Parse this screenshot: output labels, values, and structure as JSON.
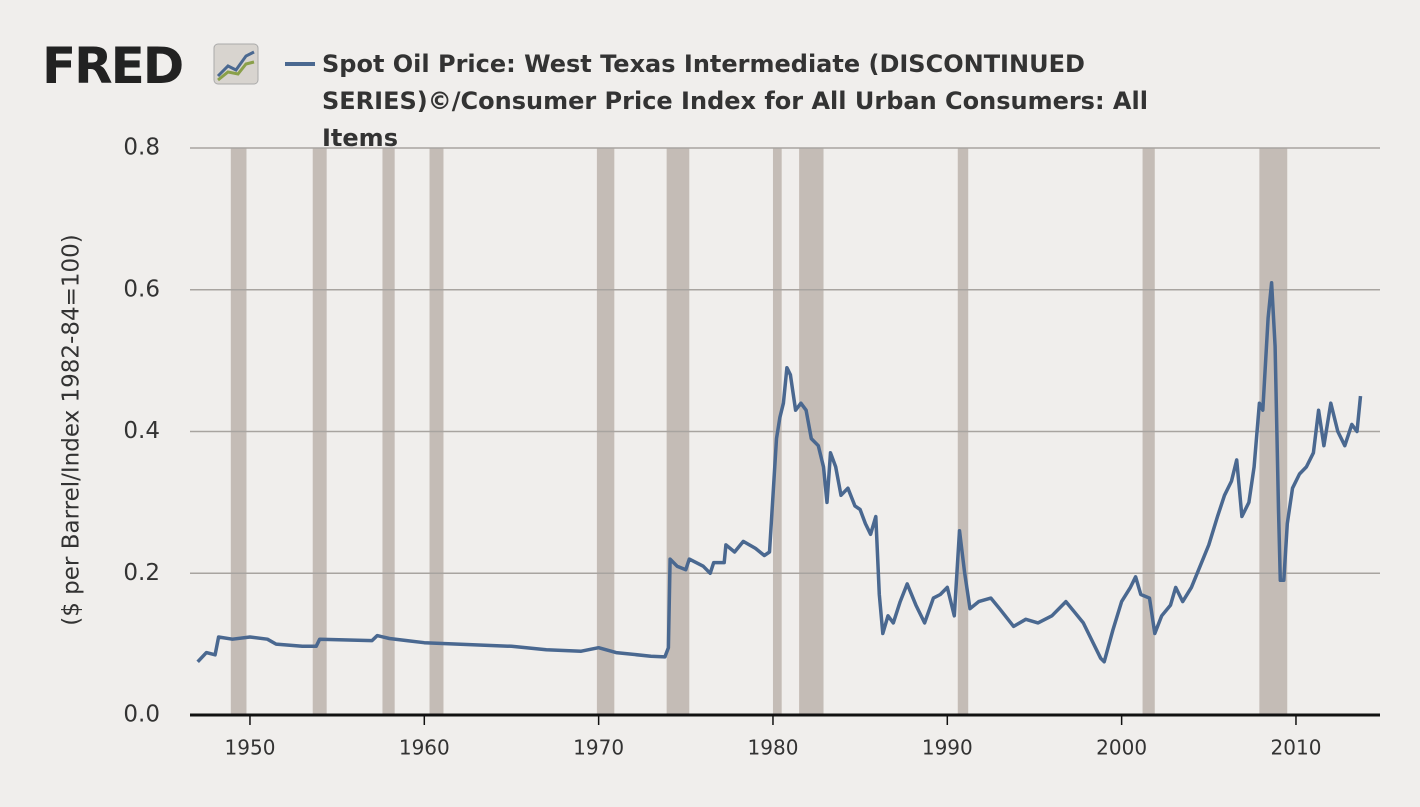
{
  "chart_data": {
    "type": "line",
    "logo": "FRED",
    "ylabel": "($ per Barrel/Index 1982-84=100)",
    "xlim": [
      1946.56,
      2014.82
    ],
    "ylim": [
      0,
      0.8
    ],
    "xticks": [
      1950,
      1960,
      1970,
      1980,
      1990,
      2000,
      2010
    ],
    "yticks": [
      {
        "value": 0,
        "label": "0.0"
      },
      0.2,
      0.4,
      0.6,
      0.8
    ],
    "grid": true,
    "recession_color": "#c4bcb6",
    "recessions": [
      [
        1948.9,
        1949.8
      ],
      [
        1953.6,
        1954.4
      ],
      [
        1957.6,
        1958.3
      ],
      [
        1960.3,
        1961.1
      ],
      [
        1969.9,
        1970.9
      ],
      [
        1973.9,
        1975.2
      ],
      [
        1980.0,
        1980.5
      ],
      [
        1981.5,
        1982.9
      ],
      [
        1990.6,
        1991.2
      ],
      [
        2001.2,
        2001.9
      ],
      [
        2007.9,
        2009.5
      ]
    ],
    "series": [
      {
        "name": "Spot Oil Price: West Texas Intermediate (DISCONTINUED SERIES)©/Consumer Price Index for All Urban Consumers: All Items",
        "color": "#4a6890",
        "x": [
          1947.0,
          1947.5,
          1948.0,
          1948.2,
          1949.0,
          1950.0,
          1951.0,
          1951.5,
          1953.0,
          1953.8,
          1954.0,
          1957.0,
          1957.3,
          1958.0,
          1959.0,
          1960.0,
          1965.0,
          1967.0,
          1969.0,
          1970.0,
          1971.0,
          1973.0,
          1973.8,
          1974.0,
          1974.1,
          1974.5,
          1975.0,
          1975.2,
          1976.0,
          1976.4,
          1976.6,
          1977.2,
          1977.3,
          1977.8,
          1978.3,
          1979.0,
          1979.5,
          1979.8,
          1980.0,
          1980.2,
          1980.4,
          1980.6,
          1980.8,
          1981.0,
          1981.3,
          1981.6,
          1981.9,
          1982.2,
          1982.6,
          1982.9,
          1983.1,
          1983.3,
          1983.6,
          1983.9,
          1984.3,
          1984.7,
          1985.0,
          1985.3,
          1985.6,
          1985.9,
          1986.1,
          1986.3,
          1986.6,
          1986.9,
          1987.3,
          1987.7,
          1988.2,
          1988.7,
          1989.2,
          1989.6,
          1990.0,
          1990.4,
          1990.7,
          1991.0,
          1991.3,
          1991.8,
          1992.5,
          1993.0,
          1993.8,
          1994.5,
          1995.2,
          1996.0,
          1996.8,
          1997.3,
          1997.8,
          1998.3,
          1998.8,
          1999.0,
          1999.5,
          2000.0,
          2000.5,
          2000.8,
          2001.1,
          2001.6,
          2001.9,
          2002.3,
          2002.8,
          2003.1,
          2003.5,
          2004.0,
          2004.5,
          2005.0,
          2005.5,
          2005.9,
          2006.3,
          2006.6,
          2006.9,
          2007.3,
          2007.6,
          2007.9,
          2008.1,
          2008.4,
          2008.6,
          2008.8,
          2009.0,
          2009.1,
          2009.3,
          2009.5,
          2009.8,
          2010.2,
          2010.6,
          2011.0,
          2011.3,
          2011.6,
          2012.0,
          2012.4,
          2012.8,
          2013.2,
          2013.5,
          2013.7
        ],
        "values": [
          0.075,
          0.088,
          0.085,
          0.11,
          0.107,
          0.11,
          0.107,
          0.1,
          0.097,
          0.097,
          0.107,
          0.105,
          0.112,
          0.108,
          0.105,
          0.102,
          0.097,
          0.092,
          0.09,
          0.095,
          0.088,
          0.083,
          0.082,
          0.095,
          0.22,
          0.21,
          0.205,
          0.22,
          0.21,
          0.2,
          0.215,
          0.215,
          0.24,
          0.23,
          0.245,
          0.235,
          0.225,
          0.23,
          0.31,
          0.39,
          0.42,
          0.44,
          0.49,
          0.48,
          0.43,
          0.44,
          0.43,
          0.39,
          0.38,
          0.35,
          0.3,
          0.37,
          0.35,
          0.31,
          0.32,
          0.295,
          0.29,
          0.27,
          0.255,
          0.28,
          0.17,
          0.115,
          0.14,
          0.13,
          0.16,
          0.185,
          0.155,
          0.13,
          0.165,
          0.17,
          0.18,
          0.14,
          0.26,
          0.2,
          0.15,
          0.16,
          0.165,
          0.15,
          0.125,
          0.135,
          0.13,
          0.14,
          0.16,
          0.145,
          0.13,
          0.105,
          0.08,
          0.075,
          0.12,
          0.16,
          0.18,
          0.195,
          0.17,
          0.165,
          0.115,
          0.14,
          0.155,
          0.18,
          0.16,
          0.18,
          0.21,
          0.24,
          0.28,
          0.31,
          0.33,
          0.36,
          0.28,
          0.3,
          0.35,
          0.44,
          0.43,
          0.56,
          0.61,
          0.52,
          0.29,
          0.19,
          0.19,
          0.27,
          0.32,
          0.34,
          0.35,
          0.37,
          0.43,
          0.38,
          0.44,
          0.4,
          0.38,
          0.41,
          0.4,
          0.45
        ]
      }
    ]
  }
}
